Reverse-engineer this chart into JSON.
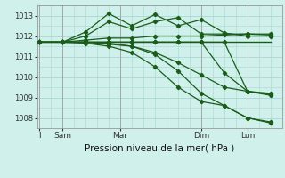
{
  "bg_color": "#cff0eb",
  "grid_color": "#a8d8d0",
  "line_color": "#1a5c1a",
  "xlabel": "Pression niveau de la mer( hPa )",
  "xlabel_fontsize": 7.5,
  "ylim": [
    1007.5,
    1013.5
  ],
  "yticks": [
    1008,
    1009,
    1010,
    1011,
    1012,
    1013
  ],
  "xtick_labels": [
    "I",
    "Sam",
    "Mar",
    "Dim",
    "Lun"
  ],
  "xtick_positions": [
    0,
    1,
    3.5,
    7,
    9
  ],
  "vline_positions": [
    0,
    1,
    3.5,
    7,
    9
  ],
  "xlim": [
    -0.1,
    10.5
  ],
  "lines": [
    {
      "x": [
        0,
        1,
        2,
        3,
        4,
        5,
        6,
        7,
        8,
        9,
        10
      ],
      "y": [
        1011.7,
        1011.7,
        1011.7,
        1011.7,
        1011.7,
        1011.7,
        1011.7,
        1011.7,
        1011.7,
        1011.7,
        1011.7
      ],
      "marker": null,
      "linewidth": 1.0
    },
    {
      "x": [
        0,
        1,
        2,
        3,
        4,
        5,
        6,
        7,
        8,
        9,
        10
      ],
      "y": [
        1011.7,
        1011.7,
        1012.2,
        1013.1,
        1012.5,
        1013.05,
        1012.5,
        1012.8,
        1012.15,
        1012.0,
        1012.0
      ],
      "marker": "D",
      "markersize": 2.2,
      "linewidth": 0.9
    },
    {
      "x": [
        0,
        1,
        2,
        3,
        4,
        5,
        6,
        7,
        8,
        9,
        10
      ],
      "y": [
        1011.7,
        1011.7,
        1012.0,
        1012.7,
        1012.35,
        1012.7,
        1012.9,
        1012.1,
        1012.1,
        1012.1,
        1012.05
      ],
      "marker": "D",
      "markersize": 2.2,
      "linewidth": 0.9
    },
    {
      "x": [
        0,
        1,
        2,
        3,
        4,
        5,
        6,
        7,
        8,
        9,
        10
      ],
      "y": [
        1011.7,
        1011.7,
        1011.8,
        1011.9,
        1011.9,
        1012.0,
        1012.0,
        1012.0,
        1012.05,
        1012.1,
        1012.1
      ],
      "marker": "D",
      "markersize": 2.2,
      "linewidth": 0.9
    },
    {
      "x": [
        0,
        1,
        2,
        3,
        4,
        5,
        6,
        7,
        8,
        9,
        10
      ],
      "y": [
        1011.7,
        1011.7,
        1011.7,
        1011.7,
        1011.7,
        1011.7,
        1011.7,
        1011.7,
        1011.7,
        1009.3,
        1009.15
      ],
      "marker": "D",
      "markersize": 2.2,
      "linewidth": 0.9
    },
    {
      "x": [
        0,
        1,
        2,
        3,
        4,
        5,
        6,
        7,
        8,
        9,
        10
      ],
      "y": [
        1011.7,
        1011.7,
        1011.7,
        1011.7,
        1011.7,
        1011.7,
        1011.7,
        1011.7,
        1010.2,
        1009.3,
        1009.2
      ],
      "marker": "D",
      "markersize": 2.2,
      "linewidth": 0.9
    },
    {
      "x": [
        0,
        1,
        2,
        3,
        4,
        5,
        6,
        7,
        8,
        9,
        10
      ],
      "y": [
        1011.7,
        1011.7,
        1011.7,
        1011.6,
        1011.5,
        1011.2,
        1010.7,
        1010.1,
        1009.5,
        1009.3,
        1009.1
      ],
      "marker": "D",
      "markersize": 2.2,
      "linewidth": 0.9
    },
    {
      "x": [
        0,
        1,
        2,
        3,
        4,
        5,
        6,
        7,
        8,
        9,
        10
      ],
      "y": [
        1011.7,
        1011.7,
        1011.7,
        1011.65,
        1011.5,
        1011.1,
        1010.3,
        1009.2,
        1008.6,
        1008.0,
        1007.8
      ],
      "marker": "D",
      "markersize": 2.2,
      "linewidth": 0.9
    },
    {
      "x": [
        0,
        1,
        2,
        3,
        4,
        5,
        6,
        7,
        8,
        9,
        10
      ],
      "y": [
        1011.7,
        1011.7,
        1011.65,
        1011.5,
        1011.2,
        1010.5,
        1009.5,
        1008.8,
        1008.6,
        1008.0,
        1007.75
      ],
      "marker": "D",
      "markersize": 2.2,
      "linewidth": 0.9
    }
  ]
}
